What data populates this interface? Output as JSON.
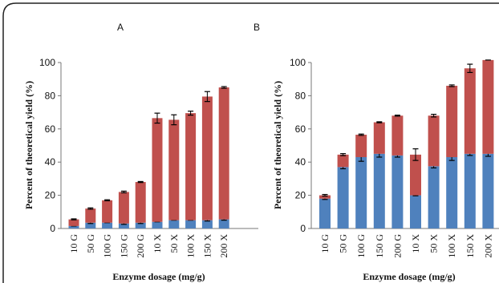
{
  "chart_data": [
    {
      "type": "bar",
      "stacked": true,
      "panel_label": "A",
      "ylabel": "Percent of theoretical yield (%)",
      "xlabel": "Enzyme dosage (mg/g)",
      "ylim": [
        0,
        100
      ],
      "yticks": [
        0,
        20,
        40,
        60,
        80,
        100
      ],
      "grid": false,
      "categories": [
        "10 G",
        "50 G",
        "100 G",
        "150 G",
        "200 G",
        "10 X",
        "50 X",
        "100 X",
        "150 X",
        "200 X"
      ],
      "series": [
        {
          "color": "#4f81bd",
          "values": [
            1.5,
            3.5,
            3.5,
            3,
            3.5,
            4,
            5,
            5,
            5,
            5.5
          ],
          "errors": [
            0,
            0.5,
            0,
            0.5,
            0.5,
            0,
            0,
            0,
            0.5,
            0.5
          ]
        },
        {
          "color": "#c0504d",
          "values": [
            4,
            8.5,
            13.5,
            19,
            24.5,
            62.5,
            60.5,
            64.5,
            74.5,
            79.5
          ],
          "errors": [
            0.3,
            0.4,
            0.3,
            0.5,
            0.3,
            3,
            3,
            1.2,
            3,
            0.5
          ]
        }
      ]
    },
    {
      "type": "bar",
      "stacked": true,
      "panel_label": "B",
      "ylabel": "Percent of theoretical yield (%)",
      "xlabel": "Enzyme dosage (mg/g)",
      "ylim": [
        0,
        100
      ],
      "yticks": [
        0,
        20,
        40,
        60,
        80,
        100
      ],
      "grid": false,
      "categories": [
        "10 G",
        "50 G",
        "100 G",
        "150 G",
        "200 G",
        "10 X",
        "50 X",
        "100 X",
        "150 X",
        "200 X"
      ],
      "series": [
        {
          "color": "#4f81bd",
          "values": [
            18,
            37,
            43,
            45,
            44,
            20,
            37.5,
            43,
            45,
            45
          ],
          "errors": [
            0.5,
            1,
            2.5,
            2,
            1,
            0.3,
            1,
            2,
            1,
            1.5
          ]
        },
        {
          "color": "#c0504d",
          "values": [
            2,
            7.5,
            13.5,
            19,
            24,
            24.5,
            30.5,
            43,
            51.5,
            56.5
          ],
          "errors": [
            0.5,
            0.6,
            0.4,
            0.3,
            0.3,
            3.5,
            0.8,
            0.5,
            2.5,
            0
          ]
        }
      ]
    }
  ]
}
